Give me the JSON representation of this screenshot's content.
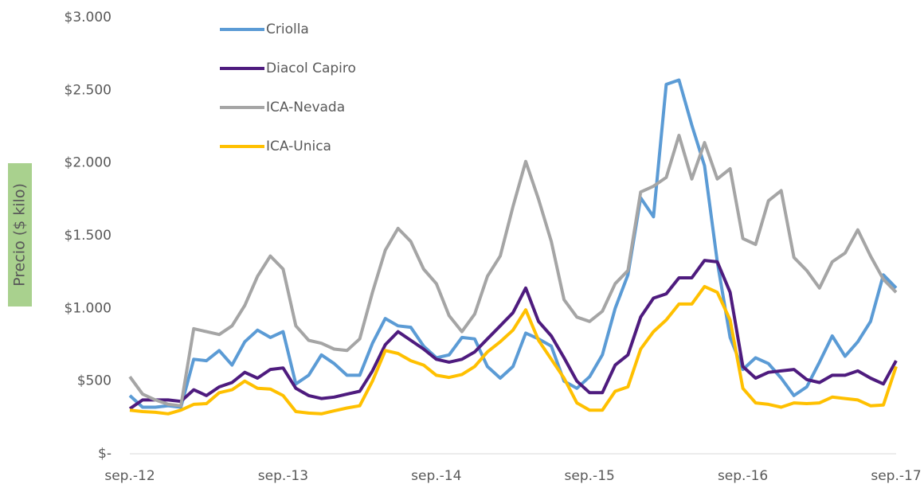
{
  "chart_data": {
    "type": "line",
    "y_axis_label": "Precio ($ kilo)",
    "categories": [
      "sep.-12",
      null,
      null,
      null,
      null,
      null,
      null,
      null,
      null,
      null,
      null,
      null,
      "sep.-13",
      null,
      null,
      null,
      null,
      null,
      null,
      null,
      null,
      null,
      null,
      null,
      "sep.-14",
      null,
      null,
      null,
      null,
      null,
      null,
      null,
      null,
      null,
      null,
      null,
      "sep.-15",
      null,
      null,
      null,
      null,
      null,
      null,
      null,
      null,
      null,
      null,
      null,
      "sep.-16",
      null,
      null,
      null,
      null,
      null,
      null,
      null,
      null,
      null,
      null,
      null,
      "sep.-17"
    ],
    "ylim": [
      0,
      3000
    ],
    "yticks": [
      {
        "value": 0,
        "label": "$-"
      },
      {
        "value": 500,
        "label": "$500"
      },
      {
        "value": 1000,
        "label": "$1.000"
      },
      {
        "value": 1500,
        "label": "$1.500"
      },
      {
        "value": 2000,
        "label": "$2.000"
      },
      {
        "value": 2500,
        "label": "$2.500"
      },
      {
        "value": 3000,
        "label": "$3.000"
      }
    ],
    "grid": false,
    "legend": "top-left",
    "series": [
      {
        "name": "Criolla",
        "color": "#5b9bd5",
        "values": [
          400,
          320,
          320,
          330,
          320,
          650,
          640,
          710,
          610,
          770,
          850,
          800,
          840,
          480,
          540,
          680,
          620,
          540,
          540,
          760,
          930,
          880,
          870,
          740,
          660,
          680,
          800,
          790,
          600,
          520,
          600,
          830,
          790,
          740,
          500,
          450,
          530,
          680,
          1000,
          1230,
          1760,
          1630,
          2540,
          2570,
          2260,
          1980,
          1320,
          800,
          580,
          660,
          620,
          520,
          400,
          460,
          630,
          810,
          670,
          770,
          910,
          1230,
          1140
        ]
      },
      {
        "name": "Diacol Capiro",
        "color": "#4e1b7e",
        "values": [
          310,
          370,
          370,
          370,
          360,
          440,
          400,
          460,
          490,
          560,
          520,
          580,
          590,
          450,
          400,
          380,
          390,
          410,
          430,
          570,
          750,
          840,
          780,
          720,
          650,
          630,
          650,
          700,
          790,
          880,
          970,
          1140,
          910,
          810,
          660,
          500,
          420,
          420,
          610,
          680,
          940,
          1070,
          1100,
          1210,
          1210,
          1330,
          1320,
          1110,
          600,
          520,
          560,
          570,
          580,
          510,
          490,
          540,
          540,
          570,
          520,
          480,
          640
        ]
      },
      {
        "name": "ICA-Nevada",
        "color": "#a5a5a5",
        "values": [
          530,
          410,
          370,
          340,
          330,
          860,
          840,
          820,
          880,
          1020,
          1220,
          1360,
          1270,
          880,
          780,
          760,
          720,
          710,
          790,
          1110,
          1400,
          1550,
          1460,
          1270,
          1170,
          950,
          840,
          960,
          1220,
          1360,
          1700,
          2010,
          1750,
          1460,
          1060,
          940,
          910,
          980,
          1170,
          1260,
          1800,
          1840,
          1900,
          2190,
          1890,
          2140,
          1890,
          1960,
          1480,
          1440,
          1740,
          1810,
          1350,
          1260,
          1140,
          1320,
          1380,
          1540,
          1360,
          1200,
          1110
        ]
      },
      {
        "name": "ICA-Unica",
        "color": "#ffc000",
        "values": [
          300,
          290,
          285,
          275,
          300,
          340,
          345,
          420,
          440,
          500,
          450,
          445,
          400,
          290,
          280,
          275,
          295,
          315,
          330,
          500,
          710,
          690,
          640,
          610,
          540,
          525,
          545,
          600,
          700,
          770,
          850,
          990,
          780,
          650,
          520,
          350,
          300,
          300,
          430,
          460,
          720,
          840,
          920,
          1030,
          1030,
          1150,
          1110,
          920,
          450,
          350,
          340,
          320,
          350,
          345,
          350,
          390,
          380,
          370,
          330,
          335,
          600
        ]
      }
    ]
  }
}
